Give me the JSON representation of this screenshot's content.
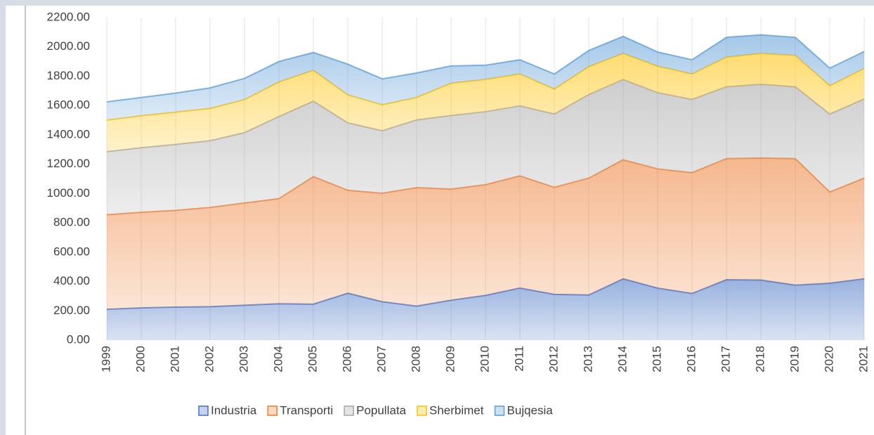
{
  "chart_data": {
    "type": "stacked_area",
    "categories": [
      "1999",
      "2000",
      "2001",
      "2002",
      "2003",
      "2004",
      "2005",
      "2006",
      "2007",
      "2008",
      "2009",
      "2010",
      "2011",
      "2012",
      "2013",
      "2014",
      "2015",
      "2016",
      "2017",
      "2018",
      "2019",
      "2020",
      "2021"
    ],
    "series": [
      {
        "name": "Industria",
        "color": "#4472c4",
        "values": [
          210,
          220,
          225,
          228,
          238,
          248,
          245,
          320,
          262,
          232,
          272,
          305,
          355,
          312,
          308,
          418,
          355,
          318,
          412,
          410,
          375,
          388,
          418
        ]
      },
      {
        "name": "Transporti",
        "color": "#ed7d31",
        "values": [
          645,
          652,
          660,
          677,
          697,
          717,
          870,
          702,
          740,
          808,
          758,
          755,
          765,
          730,
          797,
          812,
          813,
          824,
          826,
          832,
          863,
          622,
          687
        ]
      },
      {
        "name": "Popullata",
        "color": "#a5a5a5",
        "values": [
          430,
          440,
          450,
          455,
          480,
          560,
          515,
          460,
          426,
          462,
          502,
          498,
          478,
          500,
          570,
          548,
          520,
          500,
          490,
          503,
          490,
          532,
          540
        ]
      },
      {
        "name": "Sherbimet",
        "color": "#ffc000",
        "values": [
          215,
          218,
          220,
          220,
          225,
          235,
          210,
          190,
          177,
          153,
          220,
          220,
          217,
          170,
          190,
          177,
          180,
          173,
          202,
          210,
          214,
          193,
          207
        ]
      },
      {
        "name": "Bujqesia",
        "color": "#5b9bd5",
        "values": [
          125,
          125,
          130,
          140,
          145,
          140,
          122,
          210,
          177,
          167,
          118,
          97,
          97,
          103,
          110,
          117,
          97,
          97,
          135,
          127,
          123,
          120,
          116
        ]
      }
    ],
    "ylim": [
      0,
      2200
    ],
    "yticks": [
      {
        "value": 0,
        "label": "0.00"
      },
      {
        "value": 200,
        "label": "200.00"
      },
      {
        "value": 400,
        "label": "400.00"
      },
      {
        "value": 600,
        "label": "600.00"
      },
      {
        "value": 800,
        "label": "800.00"
      },
      {
        "value": 1000,
        "label": "1000.00"
      },
      {
        "value": 1200,
        "label": "1200.00"
      },
      {
        "value": 1400,
        "label": "1400.00"
      },
      {
        "value": 1600,
        "label": "1600.00"
      },
      {
        "value": 1800,
        "label": "1800.00"
      },
      {
        "value": 2000,
        "label": "2000.00"
      },
      {
        "value": 2200,
        "label": "2200.00"
      }
    ],
    "grid": true,
    "legend": "bottom"
  }
}
